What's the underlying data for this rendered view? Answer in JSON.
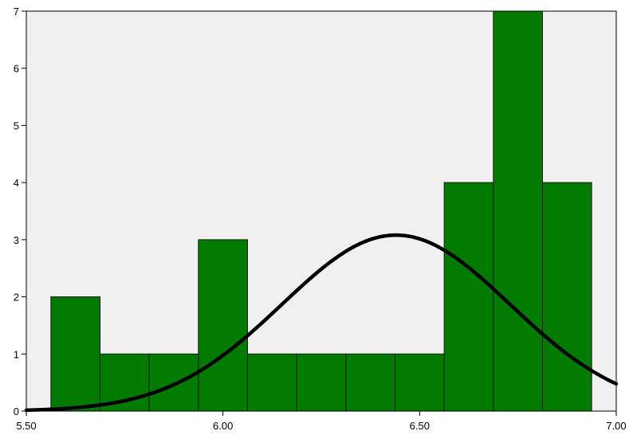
{
  "chart_data": {
    "type": "bar",
    "subtype": "histogram",
    "title": "",
    "xlabel": "",
    "ylabel": "",
    "xlim": [
      5.5,
      7.0
    ],
    "ylim": [
      0,
      7
    ],
    "x_ticks": [
      "5.50",
      "6.00",
      "6.50",
      "7.00"
    ],
    "x_tick_values": [
      5.5,
      6.0,
      6.5,
      7.0
    ],
    "y_ticks": [
      "0",
      "1",
      "2",
      "3",
      "4",
      "5",
      "6",
      "7"
    ],
    "bins": [
      {
        "start": 5.5625,
        "end": 5.6875,
        "count": 2
      },
      {
        "start": 5.6875,
        "end": 5.8125,
        "count": 1
      },
      {
        "start": 5.8125,
        "end": 5.9375,
        "count": 1
      },
      {
        "start": 5.9375,
        "end": 6.0625,
        "count": 3
      },
      {
        "start": 6.0625,
        "end": 6.1875,
        "count": 1
      },
      {
        "start": 6.1875,
        "end": 6.3125,
        "count": 1
      },
      {
        "start": 6.3125,
        "end": 6.4375,
        "count": 1
      },
      {
        "start": 6.4375,
        "end": 6.5625,
        "count": 1
      },
      {
        "start": 6.5625,
        "end": 6.6875,
        "count": 4
      },
      {
        "start": 6.6875,
        "end": 6.8125,
        "count": 7
      },
      {
        "start": 6.8125,
        "end": 6.9375,
        "count": 4
      }
    ],
    "normal_curve": {
      "mean": 6.44,
      "peak": 3.08,
      "sd": 0.29
    },
    "grid": false,
    "legend": "none",
    "colors": {
      "bar_fill": "#007a00",
      "bar_stroke": "#1a1a1a",
      "plot_background": "#f0f0f0",
      "curve": "#000000"
    }
  }
}
